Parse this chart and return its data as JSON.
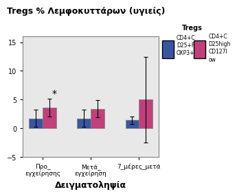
{
  "title": "Tregs % Λεμφοκυττάρων (υγιείς)",
  "xlabel": "Δειγματοληψία",
  "ylabel": "",
  "categories": [
    "Προ_\nεγχείρησης",
    "Μετά_\nεγχείρηση",
    "7_μέρες_μετά"
  ],
  "bar_width": 0.28,
  "blue_values": [
    1.7,
    1.7,
    1.4
  ],
  "pink_values": [
    3.6,
    3.4,
    5.0
  ],
  "blue_errors": [
    1.5,
    1.5,
    0.7
  ],
  "pink_errors": [
    1.5,
    1.5,
    7.5
  ],
  "blue_color": "#3a55a0",
  "pink_color": "#c0407a",
  "ylim": [
    -5,
    16
  ],
  "yticks": [
    -5,
    0,
    5,
    10,
    15
  ],
  "legend_title": "Tregs",
  "legend_label1": "CD4+C\nD25+F\nOXP3+",
  "legend_label2": "CD4+C\nD25high\nCD127l\now",
  "background_color": "#e0e0e0",
  "fig_background": "#ffffff",
  "plot_bg": "#e8e8e8"
}
